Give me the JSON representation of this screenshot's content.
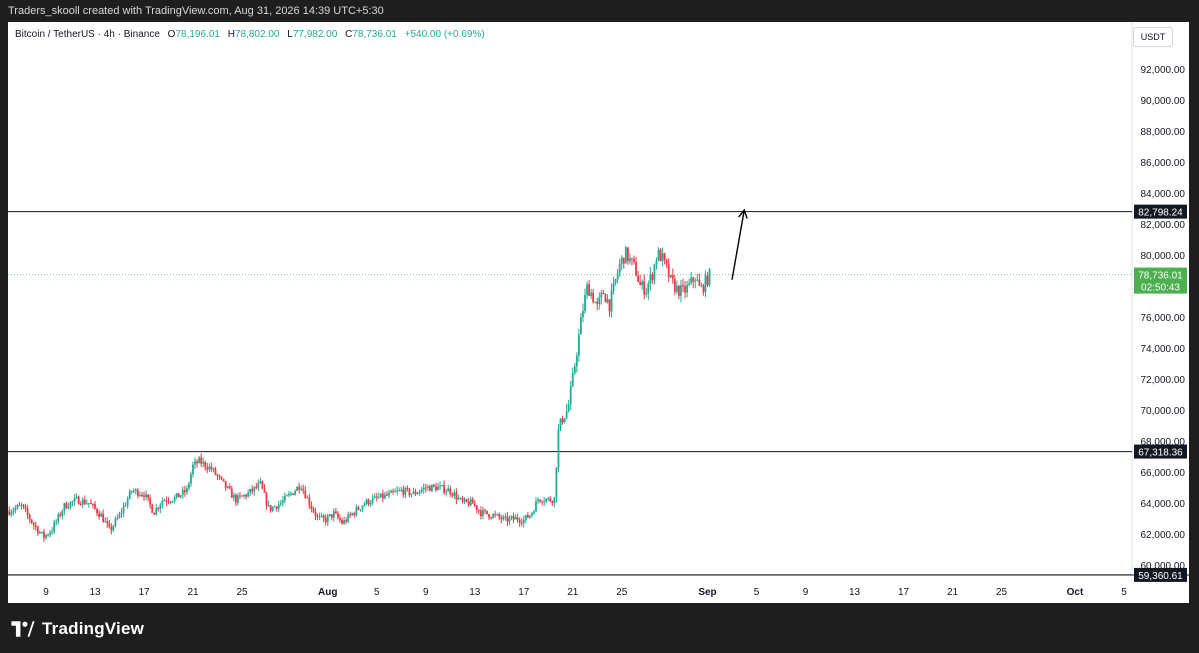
{
  "header": {
    "attribution": "Traders_skooll created with TradingView.com, Aug 31, 2026 14:39 UTC+5:30"
  },
  "legend": {
    "symbol": "Bitcoin / TetherUS · 4h · Binance",
    "open_label": "O",
    "open": "78,196.01",
    "high_label": "H",
    "high": "78,802.00",
    "low_label": "L",
    "low": "77,982.00",
    "close_label": "C",
    "close": "78,736.01",
    "change": "+540.00 (+0.69%)"
  },
  "unit_button": "USDT",
  "footer": {
    "brand": "TradingView",
    "logo_icon": "tradingview-logo-icon"
  },
  "colors": {
    "up": "#22ab94",
    "down": "#f23645",
    "line": "#131722",
    "last_price_tag": "#4caf50"
  },
  "chart_data": {
    "type": "candlestick",
    "title": "Bitcoin / TetherUS · 4h · Binance",
    "ylim": [
      59360,
      95200
    ],
    "y_ticks": [
      {
        "value": 60000,
        "label": "60,000.00"
      },
      {
        "value": 62000,
        "label": "62,000.00"
      },
      {
        "value": 64000,
        "label": "64,000.00"
      },
      {
        "value": 66000,
        "label": "66,000.00"
      },
      {
        "value": 68000,
        "label": "68,000.00"
      },
      {
        "value": 70000,
        "label": "70,000.00"
      },
      {
        "value": 72000,
        "label": "72,000.00"
      },
      {
        "value": 74000,
        "label": "74,000.00"
      },
      {
        "value": 76000,
        "label": "76,000.00"
      },
      {
        "value": 78000,
        "label": "78,000.00"
      },
      {
        "value": 80000,
        "label": "80,000.00"
      },
      {
        "value": 82000,
        "label": "82,000.00"
      },
      {
        "value": 84000,
        "label": "84,000.00"
      },
      {
        "value": 86000,
        "label": "86,000.00"
      },
      {
        "value": 88000,
        "label": "88,000.00"
      },
      {
        "value": 90000,
        "label": "90,000.00"
      },
      {
        "value": 92000,
        "label": "92,000.00"
      }
    ],
    "x_ticks": [
      {
        "day": 9,
        "label": "9"
      },
      {
        "day": 13,
        "label": "13"
      },
      {
        "day": 17,
        "label": "17"
      },
      {
        "day": 21,
        "label": "21"
      },
      {
        "day": 25,
        "label": "25"
      },
      {
        "day": 32,
        "label": "Aug"
      },
      {
        "day": 36,
        "label": "5"
      },
      {
        "day": 40,
        "label": "9"
      },
      {
        "day": 44,
        "label": "13"
      },
      {
        "day": 48,
        "label": "17"
      },
      {
        "day": 52,
        "label": "21"
      },
      {
        "day": 56,
        "label": "25"
      },
      {
        "day": 63,
        "label": "Sep"
      },
      {
        "day": 67,
        "label": "5"
      },
      {
        "day": 71,
        "label": "9"
      },
      {
        "day": 75,
        "label": "13"
      },
      {
        "day": 79,
        "label": "17"
      },
      {
        "day": 83,
        "label": "21"
      },
      {
        "day": 87,
        "label": "25"
      },
      {
        "day": 93,
        "label": "Oct"
      },
      {
        "day": 97,
        "label": "5"
      }
    ],
    "closes_path": [
      [
        6.0,
        63500
      ],
      [
        7.0,
        63800
      ],
      [
        8.0,
        62600
      ],
      [
        8.8,
        61800
      ],
      [
        9.5,
        62300
      ],
      [
        10.5,
        63800
      ],
      [
        11.5,
        64200
      ],
      [
        12.5,
        64000
      ],
      [
        13.5,
        63200
      ],
      [
        14.2,
        62200
      ],
      [
        15.0,
        63200
      ],
      [
        16.0,
        64800
      ],
      [
        17.0,
        64600
      ],
      [
        17.8,
        63400
      ],
      [
        18.5,
        64200
      ],
      [
        19.5,
        64300
      ],
      [
        20.5,
        64800
      ],
      [
        21.0,
        66400
      ],
      [
        21.5,
        66700
      ],
      [
        22.5,
        66200
      ],
      [
        23.5,
        65200
      ],
      [
        24.5,
        64200
      ],
      [
        25.5,
        64600
      ],
      [
        26.5,
        65200
      ],
      [
        27.2,
        63600
      ],
      [
        28.2,
        64000
      ],
      [
        29.0,
        64600
      ],
      [
        29.8,
        65200
      ],
      [
        30.5,
        64000
      ],
      [
        31.2,
        63000
      ],
      [
        31.8,
        62900
      ],
      [
        32.5,
        63300
      ],
      [
        33.2,
        62700
      ],
      [
        34.0,
        63300
      ],
      [
        35.0,
        64000
      ],
      [
        36.0,
        64300
      ],
      [
        37.0,
        64500
      ],
      [
        38.0,
        64800
      ],
      [
        39.0,
        64600
      ],
      [
        40.0,
        65000
      ],
      [
        41.0,
        65000
      ],
      [
        42.0,
        64800
      ],
      [
        43.0,
        64000
      ],
      [
        43.8,
        64000
      ],
      [
        44.5,
        63400
      ],
      [
        45.5,
        63200
      ],
      [
        46.5,
        62900
      ],
      [
        47.5,
        63000
      ],
      [
        48.0,
        62900
      ],
      [
        48.6,
        63300
      ],
      [
        49.2,
        64300
      ],
      [
        50.2,
        64200
      ],
      [
        50.5,
        64300
      ],
      [
        50.8,
        68500
      ],
      [
        51.2,
        69600
      ],
      [
        51.6,
        70000
      ],
      [
        52.0,
        72000
      ],
      [
        52.4,
        74200
      ],
      [
        52.8,
        76400
      ],
      [
        53.2,
        78000
      ],
      [
        53.6,
        77400
      ],
      [
        54.0,
        76600
      ],
      [
        54.5,
        77600
      ],
      [
        55.0,
        76800
      ],
      [
        55.4,
        78000
      ],
      [
        55.8,
        79300
      ],
      [
        56.3,
        80100
      ],
      [
        56.7,
        79600
      ],
      [
        57.1,
        79100
      ],
      [
        57.5,
        78000
      ],
      [
        58.0,
        77800
      ],
      [
        58.5,
        78800
      ],
      [
        58.9,
        80100
      ],
      [
        59.3,
        79800
      ],
      [
        59.7,
        79000
      ],
      [
        60.0,
        78300
      ],
      [
        60.5,
        77800
      ],
      [
        61.0,
        77600
      ],
      [
        61.5,
        78000
      ],
      [
        62.0,
        78600
      ],
      [
        62.4,
        77700
      ],
      [
        62.8,
        78200
      ],
      [
        63.2,
        78736.01
      ]
    ],
    "horizontal_levels": [
      {
        "value": 82798.24,
        "label": "82,798.24"
      },
      {
        "value": 67318.36,
        "label": "67,318.36"
      },
      {
        "value": 59360.61,
        "label": "59,360.61"
      }
    ],
    "last_price": {
      "value": 78736.01,
      "label": "78,736.01",
      "countdown": "02:50:43"
    },
    "arrow": {
      "from": {
        "day": 65.0,
        "price": 78400
      },
      "to": {
        "day": 66.0,
        "price": 82900
      }
    }
  }
}
